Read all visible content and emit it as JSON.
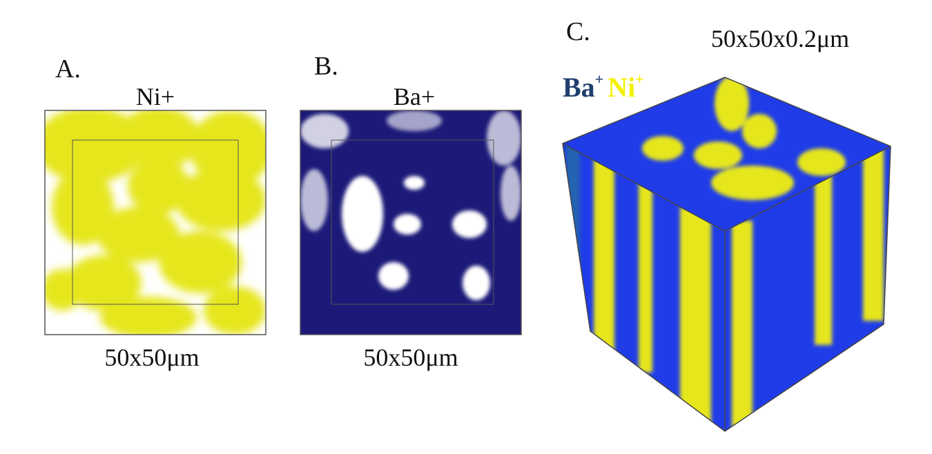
{
  "panels": [
    {
      "label": "A.",
      "ion": "Ni+",
      "scale": "50x50μm"
    },
    {
      "label": "B.",
      "ion": "Ba+",
      "scale": "50x50μm"
    },
    {
      "label": "C.",
      "scale": "50x50x0.2μm",
      "legend": [
        {
          "ion": "Ba",
          "charge": "+"
        },
        {
          "ion": "Ni",
          "charge": "+"
        }
      ]
    }
  ]
}
